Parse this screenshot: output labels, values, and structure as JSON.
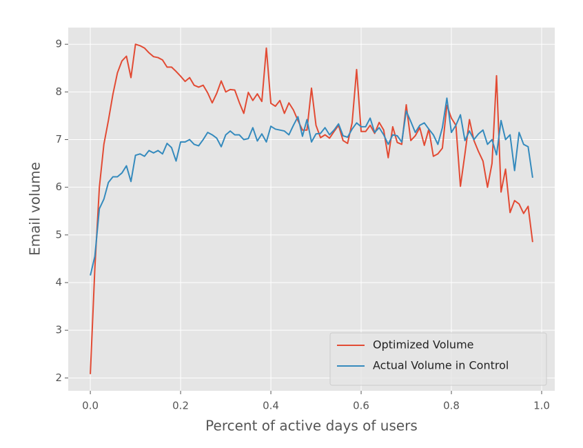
{
  "chart_data": {
    "type": "line",
    "xlabel": "Percent of active days of users",
    "ylabel": "Email volume",
    "x": [
      0,
      0.01,
      0.02,
      0.03,
      0.04,
      0.05,
      0.06,
      0.07,
      0.08,
      0.09,
      0.1,
      0.11,
      0.12,
      0.13,
      0.14,
      0.15,
      0.16,
      0.17,
      0.18,
      0.19,
      0.2,
      0.21,
      0.22,
      0.23,
      0.24,
      0.25,
      0.26,
      0.27,
      0.28,
      0.29,
      0.3,
      0.31,
      0.32,
      0.33,
      0.34,
      0.35,
      0.36,
      0.37,
      0.38,
      0.39,
      0.4,
      0.41,
      0.42,
      0.43,
      0.44,
      0.45,
      0.46,
      0.47,
      0.48,
      0.49,
      0.5,
      0.51,
      0.52,
      0.53,
      0.54,
      0.55,
      0.56,
      0.57,
      0.58,
      0.59,
      0.6,
      0.61,
      0.62,
      0.63,
      0.64,
      0.65,
      0.66,
      0.67,
      0.68,
      0.69,
      0.7,
      0.71,
      0.72,
      0.73,
      0.74,
      0.75,
      0.76,
      0.77,
      0.78,
      0.79,
      0.8,
      0.81,
      0.82,
      0.83,
      0.84,
      0.85,
      0.86,
      0.87,
      0.88,
      0.89,
      0.9,
      0.91,
      0.92,
      0.93,
      0.94,
      0.95,
      0.96,
      0.97,
      0.98
    ],
    "series": [
      {
        "name": "Optimized Volume",
        "color": "#E24A33",
        "values": [
          2.08,
          4.3,
          6.0,
          6.9,
          7.4,
          7.95,
          8.4,
          8.65,
          8.75,
          8.3,
          9.0,
          8.97,
          8.92,
          8.82,
          8.74,
          8.72,
          8.67,
          8.52,
          8.52,
          8.43,
          8.33,
          8.22,
          8.3,
          8.14,
          8.1,
          8.14,
          7.98,
          7.77,
          7.97,
          8.23,
          8.0,
          8.05,
          8.04,
          7.78,
          7.55,
          7.99,
          7.82,
          7.96,
          7.8,
          8.92,
          7.76,
          7.7,
          7.82,
          7.55,
          7.77,
          7.62,
          7.4,
          7.2,
          7.2,
          8.08,
          7.3,
          7.04,
          7.1,
          7.03,
          7.17,
          7.3,
          6.98,
          6.92,
          7.35,
          8.47,
          7.17,
          7.17,
          7.3,
          7.13,
          7.36,
          7.2,
          6.62,
          7.27,
          6.94,
          6.9,
          7.73,
          6.98,
          7.08,
          7.25,
          6.88,
          7.22,
          6.65,
          6.7,
          6.82,
          7.72,
          7.45,
          7.3,
          6.02,
          6.7,
          7.42,
          6.98,
          6.75,
          6.55,
          6.0,
          6.5,
          8.34,
          5.9,
          6.38,
          5.47,
          5.72,
          5.65,
          5.45,
          5.6,
          4.85
        ]
      },
      {
        "name": "Actual Volume in Control",
        "color": "#348ABD",
        "values": [
          4.15,
          4.55,
          5.55,
          5.75,
          6.1,
          6.22,
          6.22,
          6.3,
          6.45,
          6.12,
          6.67,
          6.7,
          6.65,
          6.77,
          6.72,
          6.77,
          6.7,
          6.92,
          6.83,
          6.55,
          6.95,
          6.95,
          7.0,
          6.9,
          6.87,
          7.0,
          7.15,
          7.1,
          7.03,
          6.85,
          7.1,
          7.18,
          7.1,
          7.1,
          7.0,
          7.02,
          7.25,
          6.97,
          7.12,
          6.95,
          7.28,
          7.22,
          7.2,
          7.18,
          7.1,
          7.3,
          7.48,
          7.07,
          7.42,
          6.95,
          7.12,
          7.13,
          7.25,
          7.1,
          7.2,
          7.33,
          7.08,
          7.05,
          7.22,
          7.35,
          7.27,
          7.27,
          7.45,
          7.15,
          7.25,
          7.1,
          6.9,
          7.1,
          7.08,
          6.95,
          7.6,
          7.38,
          7.15,
          7.3,
          7.35,
          7.22,
          7.1,
          6.9,
          7.25,
          7.87,
          7.15,
          7.3,
          7.52,
          6.98,
          7.18,
          7.0,
          7.12,
          7.2,
          6.9,
          7.0,
          6.68,
          7.4,
          7.0,
          7.1,
          6.35,
          7.15,
          6.9,
          6.85,
          6.2
        ]
      }
    ],
    "xlim": [
      -0.049,
      1.029
    ],
    "ylim": [
      1.73,
      9.35
    ],
    "xticks": [
      {
        "value": 0,
        "label": "0.0"
      },
      0.2,
      0.4,
      0.6,
      0.8,
      {
        "value": 1,
        "label": "1.0"
      }
    ],
    "yticks": [
      2,
      3,
      4,
      5,
      6,
      7,
      8,
      9
    ],
    "grid": true,
    "legend": "lower right"
  }
}
